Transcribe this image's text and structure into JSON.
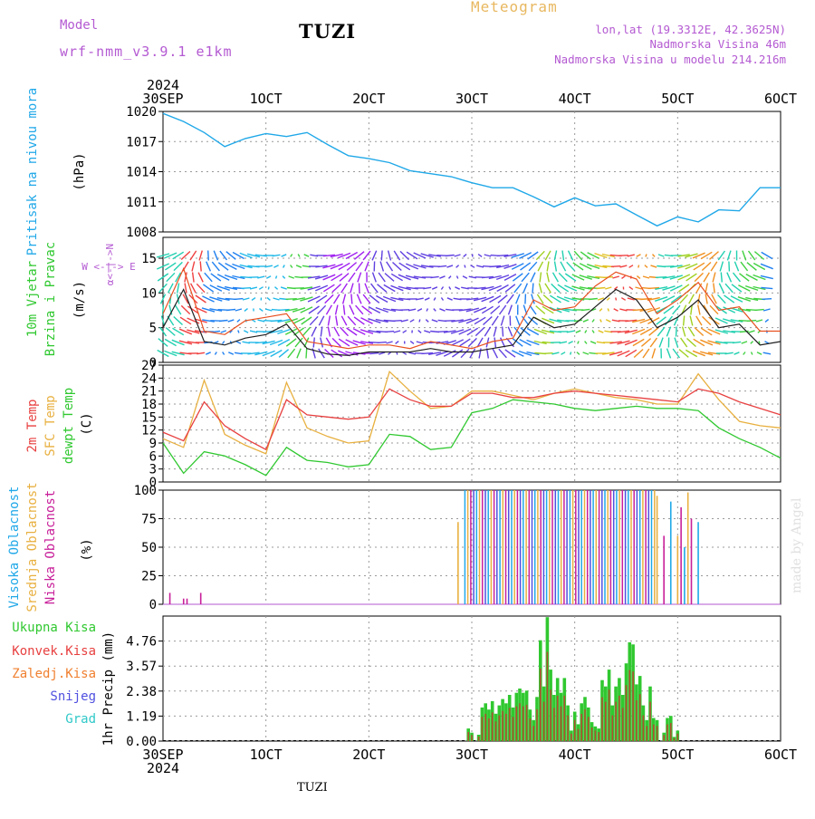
{
  "header": {
    "model_label": "Model",
    "model_name": "wrf-nmm_v3.9.1 e1km",
    "station": "TUZI",
    "meteogram_label": "Meteogram",
    "lonlat": "lon,lat (19.3312E, 42.3625N)",
    "elevation": "Nadmorska Visina 46m",
    "model_elevation": "Nadmorska Visina u modelu 214.216m",
    "bottom_station": "TUZI",
    "credit": "made by Angel"
  },
  "time_axis": {
    "year": "2024",
    "ticks": [
      "30SEP",
      "1OCT",
      "2OCT",
      "3OCT",
      "4OCT",
      "5OCT",
      "6OCT"
    ]
  },
  "colors": {
    "pressure": "#20a8e8",
    "temp": "#e84040",
    "sfc_temp": "#e8b040",
    "dewpoint": "#30c830",
    "wind_speed": "#202020",
    "wind_gust": "#e85020",
    "high_cloud": "#20a8e8",
    "mid_cloud": "#e8b040",
    "low_cloud": "#c8209a",
    "total_precip": "#30c830",
    "conv_precip": "#e84040",
    "frozen_precip": "#f08030",
    "snow": "#5050e0",
    "hail": "#30c8c8",
    "label_purple": "#b45ad2"
  },
  "chart_data": [
    {
      "type": "line",
      "title": "",
      "xlabel": "",
      "ylabel": "Pritisak na nivou mora",
      "unit": "(hPa)",
      "ylim": [
        1008,
        1020
      ],
      "yticks": [
        1008,
        1011,
        1014,
        1017,
        1020
      ],
      "grid": true,
      "x": [
        0,
        6,
        12,
        18,
        24,
        30,
        36,
        42,
        48,
        54,
        60,
        66,
        72,
        78,
        84,
        90,
        96,
        102,
        108,
        114,
        120,
        126,
        132,
        138,
        144,
        150,
        156,
        162,
        168,
        174,
        180
      ],
      "series": [
        {
          "values": [
            1019.8,
            1019.0,
            1017.9,
            1016.5,
            1017.3,
            1017.8,
            1017.5,
            1017.9,
            1016.7,
            1015.6,
            1015.3,
            1014.9,
            1014.1,
            1013.8,
            1013.5,
            1012.9,
            1012.4,
            1012.4,
            1011.5,
            1010.5,
            1011.4,
            1010.6,
            1010.8,
            1009.7,
            1008.6,
            1009.5,
            1009.0,
            1010.2,
            1010.1,
            1012.4,
            1012.4
          ]
        }
      ]
    },
    {
      "type": "line",
      "title": "",
      "ylabel": "10m Vjetar Brzina i Pravac",
      "unit": "(m/s)",
      "ylim": [
        0,
        18
      ],
      "yticks": [
        0,
        5,
        10,
        15
      ],
      "compass_vertical": "α<-|->N",
      "compass_horizontal": "W <-|-> E",
      "x": [
        0,
        6,
        12,
        18,
        24,
        30,
        36,
        42,
        48,
        54,
        60,
        66,
        72,
        78,
        84,
        90,
        96,
        102,
        108,
        114,
        120,
        126,
        132,
        138,
        144,
        150,
        156,
        162,
        168,
        174,
        180
      ],
      "series": [
        {
          "name": "speed",
          "values": [
            5.0,
            10.5,
            3.0,
            2.5,
            3.5,
            4.0,
            5.5,
            2.0,
            1.2,
            1.0,
            1.5,
            1.5,
            1.5,
            2.0,
            1.5,
            1.5,
            2.0,
            2.5,
            6.5,
            5.0,
            5.5,
            8.0,
            10.5,
            9.0,
            5.0,
            6.5,
            9.0,
            5.0,
            5.5,
            2.5,
            3.0
          ]
        },
        {
          "name": "gust",
          "values": [
            7.0,
            13.5,
            4.5,
            4.0,
            6.0,
            6.5,
            7.0,
            3.0,
            2.5,
            2.0,
            2.5,
            2.5,
            2.0,
            3.0,
            2.5,
            2.0,
            3.0,
            3.5,
            9.0,
            7.5,
            8.0,
            11.0,
            13.0,
            12.0,
            7.0,
            9.0,
            11.5,
            7.5,
            8.0,
            4.5,
            4.5
          ]
        }
      ]
    },
    {
      "type": "line",
      "title": "",
      "ylabel": "2m Temp / SFC Temp / dewpt Temp",
      "labels": [
        "2m Temp",
        "SFC Temp",
        "dewpt Temp"
      ],
      "unit": "(C)",
      "ylim": [
        0,
        27
      ],
      "yticks": [
        0,
        3,
        6,
        9,
        12,
        15,
        18,
        21,
        24,
        27
      ],
      "x": [
        0,
        6,
        12,
        18,
        24,
        30,
        36,
        42,
        48,
        54,
        60,
        66,
        72,
        78,
        84,
        90,
        96,
        102,
        108,
        114,
        120,
        126,
        132,
        138,
        144,
        150,
        156,
        162,
        168,
        174,
        180
      ],
      "series": [
        {
          "name": "2m Temp",
          "values": [
            11.5,
            9.5,
            18.5,
            13.0,
            10.0,
            7.5,
            19.0,
            15.5,
            15.0,
            14.5,
            15.0,
            21.5,
            19.0,
            17.5,
            17.5,
            20.5,
            20.5,
            19.5,
            19.5,
            20.5,
            21.0,
            20.5,
            20.0,
            19.5,
            19.0,
            18.5,
            21.5,
            20.5,
            18.5,
            17.0,
            15.5
          ]
        },
        {
          "name": "SFC Temp",
          "values": [
            10.0,
            8.0,
            23.5,
            11.0,
            8.5,
            6.5,
            23.0,
            12.5,
            10.5,
            9.0,
            9.5,
            25.5,
            21.0,
            17.0,
            17.5,
            21.0,
            21.0,
            20.0,
            19.0,
            20.5,
            21.5,
            20.5,
            19.5,
            19.0,
            18.0,
            18.0,
            25.0,
            19.0,
            14.0,
            13.0,
            12.5
          ]
        },
        {
          "name": "dewpt Temp",
          "values": [
            9.0,
            2.0,
            7.0,
            6.0,
            4.0,
            1.5,
            8.0,
            5.0,
            4.5,
            3.5,
            4.0,
            11.0,
            10.5,
            7.5,
            8.0,
            16.0,
            17.0,
            19.0,
            18.5,
            18.0,
            17.0,
            16.5,
            17.0,
            17.5,
            17.0,
            17.0,
            16.5,
            12.5,
            10.0,
            8.0,
            5.5
          ]
        }
      ]
    },
    {
      "type": "bar",
      "title": "",
      "ylabel": "Visoka Oblacnost / Srednja Oblacnost / Niska Oblacnost",
      "labels": [
        "Visoka Oblacnost",
        "Srednja Oblacnost",
        "Niska Oblacnost"
      ],
      "unit": "(%)",
      "ylim": [
        0,
        100
      ],
      "yticks": [
        0,
        25,
        50,
        75,
        100
      ],
      "cloud_start_hour": 88,
      "cloud_end_hour": 144,
      "sparse_tail_hours": [
        144,
        146,
        148,
        150,
        151,
        152,
        153,
        154,
        156
      ],
      "sparse_tail_values": [
        95,
        60,
        90,
        60,
        85,
        50,
        98,
        75,
        72
      ],
      "early_hours": [
        2,
        6,
        7,
        11
      ],
      "early_values": [
        10,
        5,
        5,
        10
      ],
      "high_start_value": 72
    },
    {
      "type": "bar",
      "title": "",
      "ylabel": "1hr Precip (mm)",
      "unit": "1hr Precip (mm)",
      "legend": [
        "Ukupna Kisa",
        "Konvek.Kisa",
        "Zaledj.Kisa",
        "Snijeg",
        "Grad"
      ],
      "ylim": [
        0,
        5.95
      ],
      "yticks": [
        0,
        1.19,
        2.38,
        3.57,
        4.76
      ],
      "x": [
        89,
        90,
        92,
        93,
        94,
        95,
        96,
        97,
        98,
        99,
        100,
        101,
        102,
        103,
        104,
        105,
        106,
        107,
        108,
        109,
        110,
        111,
        112,
        113,
        114,
        115,
        116,
        117,
        118,
        119,
        120,
        121,
        122,
        123,
        124,
        125,
        126,
        127,
        128,
        129,
        130,
        131,
        132,
        133,
        134,
        135,
        136,
        137,
        138,
        139,
        140,
        141,
        142,
        143,
        144,
        146,
        147,
        148,
        149,
        150
      ],
      "values": [
        0.6,
        0.4,
        0.3,
        1.6,
        1.8,
        1.5,
        1.9,
        1.3,
        1.7,
        2.0,
        1.8,
        2.2,
        1.6,
        2.3,
        2.5,
        2.3,
        2.4,
        1.5,
        1.0,
        2.1,
        4.8,
        2.6,
        5.9,
        3.4,
        2.2,
        3.0,
        2.3,
        3.0,
        1.7,
        0.5,
        1.4,
        0.8,
        1.8,
        2.1,
        1.6,
        0.9,
        0.7,
        0.6,
        2.9,
        2.6,
        3.4,
        1.7,
        2.6,
        3.0,
        2.2,
        3.7,
        4.7,
        4.6,
        2.7,
        3.1,
        1.7,
        1.0,
        2.6,
        1.1,
        1.0,
        0.4,
        1.1,
        1.2,
        0.2,
        0.5
      ]
    }
  ]
}
